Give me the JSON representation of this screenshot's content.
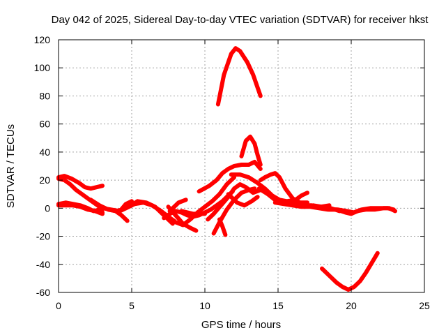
{
  "chart_data": {
    "type": "line",
    "title": "Day 042 of 2025, Sidereal Day-to-day VTEC variation (SDTVAR) for receiver hkst",
    "xlabel": "GPS time / hours",
    "ylabel": "SDTVAR / TECUs",
    "xlim": [
      0,
      25
    ],
    "ylim": [
      -60,
      120
    ],
    "xticks": [
      0,
      5,
      10,
      15,
      20,
      25
    ],
    "yticks": [
      -60,
      -40,
      -20,
      0,
      20,
      40,
      60,
      80,
      100,
      120
    ],
    "xtick_labels": [
      "0",
      "5",
      "10",
      "15",
      "20",
      "25"
    ],
    "ytick_labels": [
      "-60",
      "-40",
      "-20",
      "0",
      "20",
      "40",
      "60",
      "80",
      "100",
      "120"
    ],
    "grid": true,
    "series_color": "#ff0000",
    "series": [
      {
        "name": "s1",
        "x": [
          10.9,
          11.3,
          11.8,
          12.1,
          12.4,
          12.9,
          13.3,
          13.6,
          13.8
        ],
        "y": [
          74,
          95,
          110,
          114,
          112,
          104,
          95,
          86,
          80
        ]
      },
      {
        "name": "s2",
        "x": [
          12.5,
          12.8,
          13.1,
          13.4,
          13.6,
          13.8
        ],
        "y": [
          37,
          48,
          51,
          46,
          38,
          31
        ]
      },
      {
        "name": "s3",
        "x": [
          0.0,
          0.4,
          0.9,
          1.4,
          1.8,
          2.2,
          2.6,
          3.0
        ],
        "y": [
          22,
          23,
          21,
          18,
          15,
          14,
          15,
          16
        ]
      },
      {
        "name": "s4",
        "x": [
          0.0,
          0.4,
          0.8,
          1.2,
          1.6,
          2.0,
          2.4,
          2.8,
          3.0
        ],
        "y": [
          21,
          20,
          17,
          13,
          10,
          7,
          4,
          1,
          -3
        ]
      },
      {
        "name": "s5",
        "x": [
          0.0,
          0.5,
          1.0,
          1.5,
          2.0,
          2.4,
          2.8,
          3.1
        ],
        "y": [
          3,
          4,
          3,
          2,
          0,
          -2,
          -1,
          0
        ]
      },
      {
        "name": "s6",
        "x": [
          0.0,
          0.5,
          1.0,
          1.5,
          2.0,
          2.5,
          3.0
        ],
        "y": [
          2,
          2,
          2,
          1,
          -1,
          -2,
          -4
        ]
      },
      {
        "name": "s7",
        "x": [
          2.2,
          2.8,
          3.4,
          3.9,
          4.3,
          4.7
        ],
        "y": [
          6,
          2,
          -1,
          -2,
          -5,
          -9
        ]
      },
      {
        "name": "s8",
        "x": [
          3.4,
          4.0,
          4.6,
          5.2,
          5.8,
          6.4,
          7.0,
          7.6,
          7.9
        ],
        "y": [
          -1,
          -2,
          0,
          3,
          4,
          2,
          -2,
          -7,
          -9
        ]
      },
      {
        "name": "s9",
        "x": [
          3.0,
          3.6,
          4.2,
          4.8,
          5.4,
          6.0,
          6.6,
          7.2,
          7.8
        ],
        "y": [
          0,
          -1,
          -2,
          1,
          5,
          4,
          1,
          -5,
          -11
        ]
      },
      {
        "name": "s10",
        "x": [
          4.2,
          4.6,
          5.0
        ],
        "y": [
          -2,
          3,
          5
        ]
      },
      {
        "name": "s11",
        "x": [
          7.2,
          7.6,
          8.0,
          8.4,
          8.8,
          9.2,
          9.6,
          10.0,
          10.4,
          10.8,
          11.2,
          11.6,
          11.9
        ],
        "y": [
          -7,
          -4,
          -2,
          -3,
          -5,
          -6,
          -5,
          -3,
          -1,
          2,
          5,
          9,
          12
        ]
      },
      {
        "name": "s12",
        "x": [
          7.0,
          7.5,
          8.0,
          8.5,
          9.0,
          9.5,
          10.0,
          10.5,
          11.0,
          11.5,
          12.0
        ],
        "y": [
          -2,
          -6,
          -10,
          -12,
          -8,
          -3,
          1,
          5,
          10,
          17,
          22
        ]
      },
      {
        "name": "s13",
        "x": [
          7.5,
          8.0,
          8.5,
          9.0,
          9.4
        ],
        "y": [
          1,
          -5,
          -11,
          -14,
          -16
        ]
      },
      {
        "name": "s14",
        "x": [
          8.4,
          8.8,
          9.2,
          9.6,
          10.0
        ],
        "y": [
          -2,
          -3,
          -4,
          -4,
          -4
        ]
      },
      {
        "name": "s15",
        "x": [
          7.6,
          8.2,
          8.7
        ],
        "y": [
          -2,
          4,
          6
        ]
      },
      {
        "name": "s16",
        "x": [
          9.6,
          10.3,
          10.8,
          11.2,
          11.6,
          12.0,
          12.5,
          13.0,
          13.4,
          13.8
        ],
        "y": [
          12,
          16,
          20,
          25,
          28,
          30,
          31,
          31,
          33,
          28
        ]
      },
      {
        "name": "s17",
        "x": [
          10.2,
          10.6,
          11.1,
          11.6,
          12.0,
          12.4,
          12.8,
          13.3,
          13.8
        ],
        "y": [
          -8,
          -4,
          2,
          8,
          14,
          17,
          15,
          11,
          13
        ]
      },
      {
        "name": "s18",
        "x": [
          10.6,
          11.0,
          11.5,
          12.0,
          12.5,
          13.0,
          13.4
        ],
        "y": [
          -18,
          -10,
          -1,
          6,
          11,
          13,
          14
        ]
      },
      {
        "name": "s19",
        "x": [
          11.0,
          11.2,
          11.4
        ],
        "y": [
          -8,
          -13,
          -19
        ]
      },
      {
        "name": "s20",
        "x": [
          11.6,
          12.2,
          12.7,
          13.2,
          13.6
        ],
        "y": [
          10,
          4,
          2,
          5,
          8
        ]
      },
      {
        "name": "s21",
        "x": [
          11.8,
          12.4,
          13.0,
          13.6,
          14.1,
          14.6,
          15.1,
          15.6,
          16.2,
          16.6,
          17.0
        ],
        "y": [
          24,
          24,
          22,
          18,
          14,
          9,
          6,
          5,
          6,
          9,
          11
        ]
      },
      {
        "name": "s22",
        "x": [
          13.8,
          14.1,
          14.5,
          14.8,
          15.1,
          15.5,
          16.0,
          16.5,
          17.0
        ],
        "y": [
          20,
          22,
          24,
          25,
          22,
          14,
          7,
          4,
          4
        ]
      },
      {
        "name": "s23",
        "x": [
          13.7,
          14.3,
          14.9,
          15.5,
          16.1,
          16.7,
          17.3,
          17.9,
          18.5
        ],
        "y": [
          14,
          10,
          5,
          3,
          2,
          2,
          2,
          1,
          2
        ]
      },
      {
        "name": "s24",
        "x": [
          14.8,
          15.4,
          16.0,
          16.6,
          17.2,
          17.8,
          18.4,
          19.0,
          19.6,
          20.0,
          20.4,
          21.0,
          21.6,
          22.2,
          22.6,
          23.0
        ],
        "y": [
          4,
          3,
          2,
          1,
          1,
          0,
          -1,
          -1,
          -3,
          -4,
          -2,
          -1,
          -1,
          0,
          0,
          -2
        ]
      },
      {
        "name": "s25",
        "x": [
          14.9,
          15.5,
          16.1,
          16.7,
          17.3,
          17.9,
          18.5,
          19.1,
          19.7,
          20.2,
          20.7,
          21.3,
          21.9,
          22.5,
          22.9
        ],
        "y": [
          6,
          4,
          3,
          2,
          1,
          0,
          -1,
          -1,
          -2,
          -3,
          -1,
          0,
          0,
          0,
          -1
        ]
      },
      {
        "name": "s26",
        "x": [
          16.8,
          17.4,
          18.0,
          18.6,
          19.2
        ],
        "y": [
          1,
          2,
          1,
          0,
          -2
        ]
      },
      {
        "name": "s27",
        "x": [
          18.0,
          18.5,
          19.0,
          19.4,
          19.8,
          20.2,
          20.6,
          21.0,
          21.4,
          21.8
        ],
        "y": [
          -43,
          -48,
          -53,
          -56,
          -58,
          -56,
          -52,
          -46,
          -39,
          -32
        ]
      }
    ]
  }
}
